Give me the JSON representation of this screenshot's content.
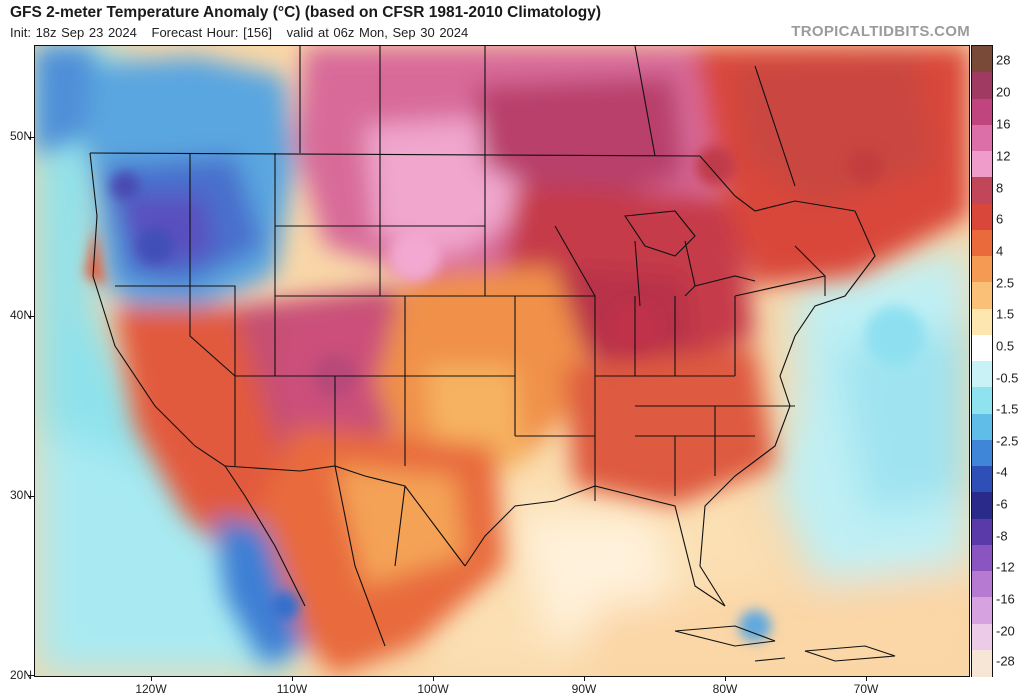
{
  "header": {
    "title": "GFS 2-meter Temperature Anomaly (°C) (based on CFSR 1981-2010 Climatology)",
    "init": "Init: 18z Sep 23 2024",
    "forecast_hour": "Forecast Hour: [156]",
    "valid": "valid at 06z Mon, Sep 30 2024",
    "brand": "TROPICALTIDBITS.COM"
  },
  "map": {
    "lat_labels": [
      "50N",
      "40N",
      "30N",
      "20N"
    ],
    "lon_labels": [
      "120W",
      "110W",
      "100W",
      "90W",
      "80W",
      "70W"
    ],
    "lat_values": [
      50,
      40,
      30,
      20
    ],
    "lon_values": [
      -120,
      -110,
      -100,
      -90,
      -80,
      -70
    ]
  },
  "colorbar": {
    "labels": [
      "28",
      "20",
      "16",
      "12",
      "8",
      "6",
      "4",
      "2.5",
      "1.5",
      "0.5",
      "-0.5",
      "-1.5",
      "-2.5",
      "-4",
      "-6",
      "-8",
      "-12",
      "-16",
      "-20",
      "-28"
    ],
    "colors": [
      "#7a4a38",
      "#a03a62",
      "#c0447e",
      "#dd6fa8",
      "#f09ccb",
      "#c2465a",
      "#d9473a",
      "#ea6a3c",
      "#f59a52",
      "#fbc077",
      "#fde6b0",
      "#ffffff",
      "#c8f2f6",
      "#8fe3ee",
      "#5fbde8",
      "#3f86d8",
      "#2e4fb6",
      "#2a2a8a",
      "#5a3aa8",
      "#8a55c0",
      "#b77ad2",
      "#d6a3e0",
      "#eccbe9",
      "#f7e6d6"
    ]
  }
}
